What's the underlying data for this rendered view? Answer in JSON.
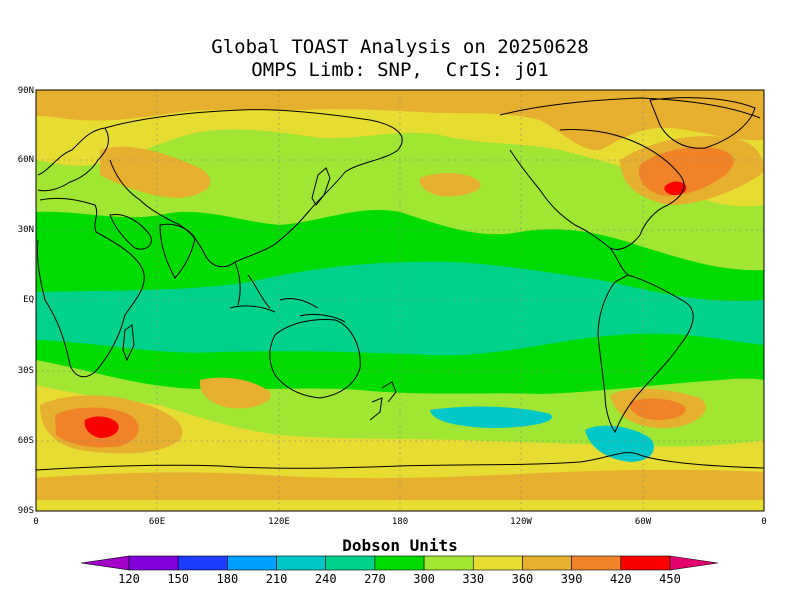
{
  "title_line1": "Global TOAST Analysis on 20250628",
  "title_line2": "OMPS Limb: SNP,  CrIS: j01",
  "lat_labels": [
    "90N",
    "60N",
    "30N",
    "EQ",
    "30S",
    "60S",
    "90S"
  ],
  "lon_labels": [
    "0",
    "60E",
    "120E",
    "180",
    "120W",
    "60W",
    "0"
  ],
  "colorbar": {
    "units_label": "Dobson Units",
    "ticks": [
      "120",
      "150",
      "180",
      "210",
      "240",
      "270",
      "300",
      "330",
      "360",
      "390",
      "420",
      "450"
    ],
    "colors": [
      "#a000c8",
      "#8200dc",
      "#1e3cff",
      "#00a0ff",
      "#00c8c8",
      "#00d28c",
      "#00dc00",
      "#a0e632",
      "#e6dc32",
      "#e6af2d",
      "#f08228",
      "#fa0000",
      "#e1006e"
    ]
  },
  "map_colors": {
    "background": "#00d28c",
    "continent_outline": "#000000",
    "grid_line": "#888888"
  }
}
